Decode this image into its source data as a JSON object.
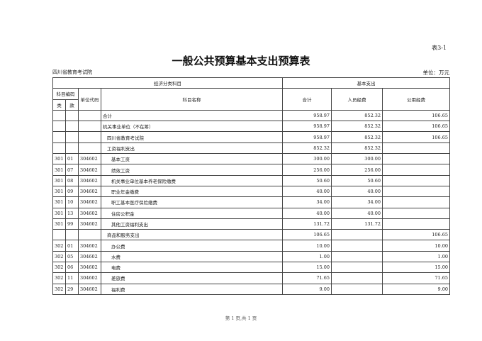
{
  "table_no": "表3-1",
  "title": "一般公共预算基本支出预算表",
  "org": "四川省教育考试院",
  "unit": "单位：万元",
  "headers": {
    "econ": "经济分类科目",
    "basic": "基本支出",
    "code": "科目编码",
    "lei": "类",
    "kuan": "款",
    "unit_code": "单位代码",
    "name": "科目名称",
    "total": "合计",
    "personnel": "人员经费",
    "public": "公用经费"
  },
  "rows": [
    {
      "lei": "",
      "kuan": "",
      "code": "",
      "name": "合计",
      "indent": 0,
      "total": "958.97",
      "personnel": "852.32",
      "public": "106.65"
    },
    {
      "lei": "",
      "kuan": "",
      "code": "",
      "name": "机关事业单位（不在筹）",
      "indent": 0,
      "total": "958.97",
      "personnel": "852.32",
      "public": "106.65"
    },
    {
      "lei": "",
      "kuan": "",
      "code": "",
      "name": "四川省教育考试院",
      "indent": 1,
      "total": "958.97",
      "personnel": "852.32",
      "public": "106.65"
    },
    {
      "lei": "",
      "kuan": "",
      "code": "",
      "name": "工资福利支出",
      "indent": 1,
      "total": "852.32",
      "personnel": "852.32",
      "public": ""
    },
    {
      "lei": "301",
      "kuan": "01",
      "code": "304602",
      "name": "基本工资",
      "indent": 2,
      "total": "300.00",
      "personnel": "300.00",
      "public": ""
    },
    {
      "lei": "301",
      "kuan": "07",
      "code": "304602",
      "name": "绩效工资",
      "indent": 2,
      "total": "256.00",
      "personnel": "256.00",
      "public": ""
    },
    {
      "lei": "301",
      "kuan": "08",
      "code": "304602",
      "name": "机关事业单位基本养老保险缴费",
      "indent": 2,
      "total": "50.60",
      "personnel": "50.60",
      "public": ""
    },
    {
      "lei": "301",
      "kuan": "09",
      "code": "304602",
      "name": "职业年金缴费",
      "indent": 2,
      "total": "40.00",
      "personnel": "40.00",
      "public": ""
    },
    {
      "lei": "301",
      "kuan": "10",
      "code": "304602",
      "name": "职工基本医疗保险缴费",
      "indent": 2,
      "total": "34.00",
      "personnel": "34.00",
      "public": ""
    },
    {
      "lei": "301",
      "kuan": "13",
      "code": "304602",
      "name": "住房公积金",
      "indent": 2,
      "total": "40.00",
      "personnel": "40.00",
      "public": ""
    },
    {
      "lei": "301",
      "kuan": "99",
      "code": "304602",
      "name": "其他工资福利支出",
      "indent": 2,
      "total": "131.72",
      "personnel": "131.72",
      "public": ""
    },
    {
      "lei": "",
      "kuan": "",
      "code": "",
      "name": "商品和服务支出",
      "indent": 1,
      "total": "106.65",
      "personnel": "",
      "public": "106.65"
    },
    {
      "lei": "302",
      "kuan": "01",
      "code": "304602",
      "name": "办公费",
      "indent": 2,
      "total": "10.00",
      "personnel": "",
      "public": "10.00"
    },
    {
      "lei": "302",
      "kuan": "05",
      "code": "304602",
      "name": "水费",
      "indent": 2,
      "total": "1.00",
      "personnel": "",
      "public": "1.00"
    },
    {
      "lei": "302",
      "kuan": "06",
      "code": "304602",
      "name": "电费",
      "indent": 2,
      "total": "15.00",
      "personnel": "",
      "public": "15.00"
    },
    {
      "lei": "302",
      "kuan": "11",
      "code": "304602",
      "name": "差旅费",
      "indent": 2,
      "total": "71.65",
      "personnel": "",
      "public": "71.65"
    },
    {
      "lei": "302",
      "kuan": "29",
      "code": "304602",
      "name": "福利费",
      "indent": 2,
      "total": "9.00",
      "personnel": "",
      "public": "9.00"
    }
  ],
  "footer": "第 1 页,共 1 页"
}
